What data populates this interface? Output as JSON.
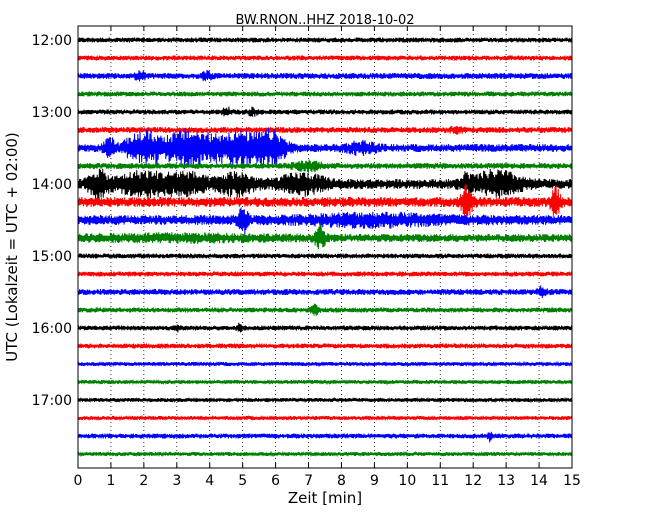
{
  "chart_data": {
    "type": "line",
    "title": "BW.RNON..HHZ 2018-10-02",
    "xlabel": "Zeit  [min]",
    "ylabel": "UTC (Lokalzeit = UTC + 02:00)",
    "xlim": [
      0,
      15
    ],
    "x_ticks": [
      "0",
      "1",
      "2",
      "3",
      "4",
      "5",
      "6",
      "7",
      "8",
      "9",
      "10",
      "11",
      "12",
      "13",
      "14",
      "15"
    ],
    "y_tick_labels": [
      "12:00",
      "13:00",
      "14:00",
      "15:00",
      "16:00",
      "17:00"
    ],
    "grid": "vertical dotted",
    "legend": "none",
    "color_cycle": [
      "#000000",
      "#ff0000",
      "#0000ff",
      "#008000"
    ],
    "traces": [
      {
        "start": "12:00",
        "amp": 2.5,
        "events": []
      },
      {
        "start": "12:15",
        "amp": 2.5,
        "events": []
      },
      {
        "start": "12:30",
        "amp": 3,
        "events": [
          {
            "t": 1.9,
            "w": 0.12,
            "a": 3
          },
          {
            "t": 3.9,
            "w": 0.1,
            "a": 3.5
          }
        ]
      },
      {
        "start": "12:45",
        "amp": 2.5,
        "events": []
      },
      {
        "start": "13:00",
        "amp": 2.5,
        "events": [
          {
            "t": 4.5,
            "w": 0.1,
            "a": 4
          },
          {
            "t": 5.3,
            "w": 0.1,
            "a": 3
          }
        ]
      },
      {
        "start": "13:15",
        "amp": 3,
        "events": [
          {
            "t": 11.5,
            "w": 0.15,
            "a": 2
          }
        ]
      },
      {
        "start": "13:30",
        "amp": 4,
        "events": [
          {
            "t": 0.95,
            "w": 0.1,
            "a": 10
          },
          {
            "t": 2.0,
            "w": 0.4,
            "a": 14
          },
          {
            "t": 3.3,
            "w": 0.5,
            "a": 15
          },
          {
            "t": 4.8,
            "w": 0.6,
            "a": 15
          },
          {
            "t": 5.9,
            "w": 0.3,
            "a": 13
          },
          {
            "t": 8.6,
            "w": 0.3,
            "a": 5
          }
        ]
      },
      {
        "start": "13:45",
        "amp": 3,
        "events": [
          {
            "t": 7.0,
            "w": 0.3,
            "a": 4
          }
        ]
      },
      {
        "start": "14:00",
        "amp": 5,
        "events": [
          {
            "t": 0.6,
            "w": 0.2,
            "a": 12
          },
          {
            "t": 2.0,
            "w": 0.6,
            "a": 10
          },
          {
            "t": 3.3,
            "w": 0.4,
            "a": 9
          },
          {
            "t": 4.8,
            "w": 0.4,
            "a": 9
          },
          {
            "t": 6.8,
            "w": 0.5,
            "a": 8
          },
          {
            "t": 11.8,
            "w": 0.1,
            "a": 8
          },
          {
            "t": 12.7,
            "w": 0.5,
            "a": 11
          }
        ]
      },
      {
        "start": "14:15",
        "amp": 5,
        "events": [
          {
            "t": 11.8,
            "w": 0.12,
            "a": 14
          },
          {
            "t": 14.5,
            "w": 0.1,
            "a": 12
          }
        ]
      },
      {
        "start": "14:30",
        "amp": 5,
        "events": [
          {
            "t": 5.0,
            "w": 0.1,
            "a": 12
          },
          {
            "t": 9.0,
            "w": 1.5,
            "a": 4
          }
        ]
      },
      {
        "start": "14:45",
        "amp": 4,
        "events": [
          {
            "t": 7.35,
            "w": 0.1,
            "a": 11
          },
          {
            "t": 3.0,
            "w": 2.0,
            "a": 2
          }
        ]
      },
      {
        "start": "15:00",
        "amp": 2.5,
        "events": []
      },
      {
        "start": "15:15",
        "amp": 2.5,
        "events": []
      },
      {
        "start": "15:30",
        "amp": 3,
        "events": [
          {
            "t": 14.1,
            "w": 0.1,
            "a": 4
          }
        ]
      },
      {
        "start": "15:45",
        "amp": 2.5,
        "events": [
          {
            "t": 7.2,
            "w": 0.08,
            "a": 4
          }
        ]
      },
      {
        "start": "16:00",
        "amp": 2.5,
        "events": [
          {
            "t": 3.0,
            "w": 0.05,
            "a": 3
          },
          {
            "t": 4.9,
            "w": 0.05,
            "a": 3
          }
        ]
      },
      {
        "start": "16:15",
        "amp": 2.5,
        "events": []
      },
      {
        "start": "16:30",
        "amp": 2,
        "events": []
      },
      {
        "start": "16:45",
        "amp": 2,
        "events": []
      },
      {
        "start": "17:00",
        "amp": 2,
        "events": []
      },
      {
        "start": "17:15",
        "amp": 2,
        "events": []
      },
      {
        "start": "17:30",
        "amp": 2.5,
        "events": [
          {
            "t": 12.5,
            "w": 0.05,
            "a": 4
          }
        ]
      },
      {
        "start": "17:45",
        "amp": 2,
        "events": []
      }
    ]
  }
}
